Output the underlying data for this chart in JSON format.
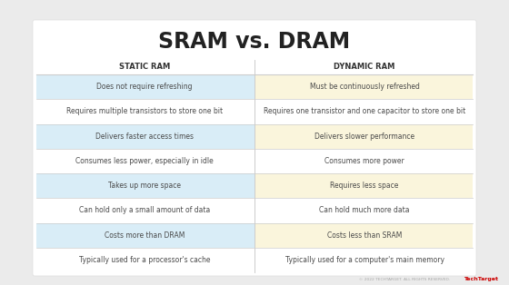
{
  "title": "SRAM vs. DRAM",
  "col1_header": "STATIC RAM",
  "col2_header": "DYNAMIC RAM",
  "rows": [
    [
      "Does not require refreshing",
      "Must be continuously refreshed"
    ],
    [
      "Requires multiple transistors to store one bit",
      "Requires one transistor and one capacitor to store one bit"
    ],
    [
      "Delivers faster access times",
      "Delivers slower performance"
    ],
    [
      "Consumes less power, especially in idle",
      "Consumes more power"
    ],
    [
      "Takes up more space",
      "Requires less space"
    ],
    [
      "Can hold only a small amount of data",
      "Can hold much more data"
    ],
    [
      "Costs more than DRAM",
      "Costs less than SRAM"
    ],
    [
      "Typically used for a processor's cache",
      "Typically used for a computer's main memory"
    ]
  ],
  "highlighted_rows": [
    0,
    2,
    4,
    6
  ],
  "col1_highlight_color": "#d9edf7",
  "col2_highlight_color": "#faf5dc",
  "col1_normal_color": "#ffffff",
  "col2_normal_color": "#ffffff",
  "bg_color": "#ebebeb",
  "table_bg": "#ffffff",
  "header_color": "#333333",
  "row_text_color": "#4a4a4a",
  "title_color": "#222222",
  "divider_color": "#cccccc",
  "title_fontsize": 17,
  "header_fontsize": 6.0,
  "row_fontsize": 5.5,
  "footer_text": "© 2022 TECHTARGET. ALL RIGHTS RESERVED.",
  "logo_text": "TechTarget"
}
